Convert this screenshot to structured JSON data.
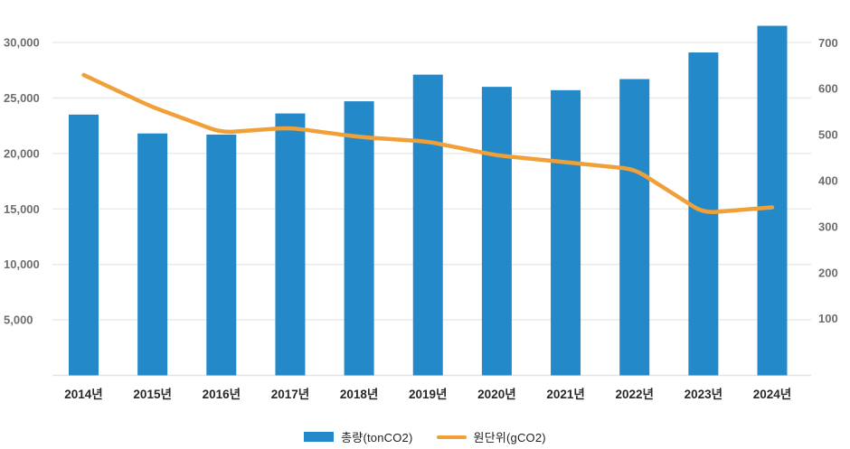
{
  "chart_data": {
    "type": "bar+line combo",
    "title": "",
    "categories": [
      "2014년",
      "2015년",
      "2016년",
      "2017년",
      "2018년",
      "2019년",
      "2020년",
      "2021년",
      "2022년",
      "2023년",
      "2024년"
    ],
    "series": [
      {
        "name": "총량(tonCO2)",
        "type": "bar",
        "y_axis": "left",
        "color": "#2489C8",
        "values": [
          23500,
          21800,
          21700,
          23600,
          24700,
          27100,
          26000,
          25700,
          26700,
          29100,
          31500
        ]
      },
      {
        "name": "원단위(gCO2)",
        "type": "line",
        "y_axis": "right",
        "color": "#F0A038",
        "values": [
          630,
          560,
          505,
          515,
          495,
          485,
          455,
          440,
          425,
          330,
          342
        ]
      }
    ],
    "left_axis": {
      "ticks": [
        5000,
        10000,
        15000,
        20000,
        25000,
        30000
      ],
      "min": 0,
      "max": 32000
    },
    "right_axis": {
      "ticks": [
        100,
        200,
        300,
        400,
        500,
        600,
        700
      ]
    },
    "grid": true,
    "legend_position": "bottom"
  },
  "legend": {
    "items": [
      {
        "label": "총량(tonCO2)"
      },
      {
        "label": "원단위(gCO2)"
      }
    ]
  },
  "colors": {
    "bar": "#2489C8",
    "line": "#F0A038",
    "grid": "#E8E8E8",
    "axis_line": "#E3E3E3",
    "axis_tick_text": "#6E6E6E",
    "category_text": "#26282A",
    "background": "#FFFFFF"
  }
}
